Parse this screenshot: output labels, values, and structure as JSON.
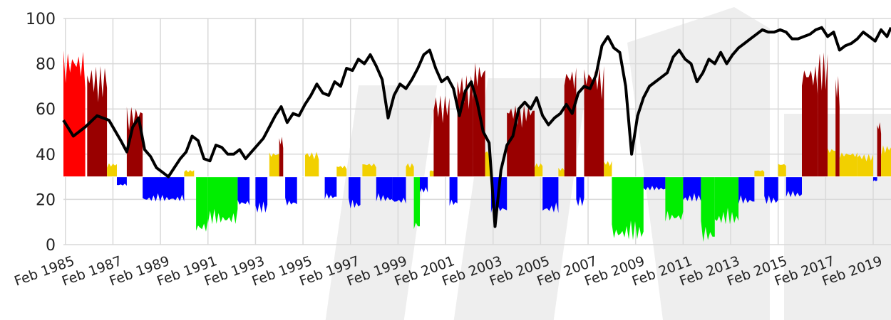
{
  "chart_data": {
    "type": "area",
    "title": "",
    "xlabel": "",
    "ylabel": "",
    "xlim": [
      "1985-01",
      "2019-11"
    ],
    "ylim": [
      0,
      100
    ],
    "baseline": 30,
    "grid": true,
    "legend": "none",
    "y_ticks": [
      0,
      20,
      40,
      60,
      80,
      100
    ],
    "x_ticks": [
      "Feb 1985",
      "Feb 1987",
      "Feb 1989",
      "Feb 1991",
      "Feb 1993",
      "Feb 1995",
      "Feb 1997",
      "Feb 1999",
      "Feb 2001",
      "Feb 2003",
      "Feb 2005",
      "Feb 2007",
      "Feb 2009",
      "Feb 2011",
      "Feb 2013",
      "Feb 2015",
      "Feb 2017",
      "Feb 2019"
    ],
    "colors": {
      "line": "#000000",
      "red": "#ff0000",
      "darkred": "#990000",
      "yellow": "#f2d000",
      "blue": "#0000ff",
      "green": "#00ee00",
      "grid": "#d9d9d9"
    },
    "line_series": [
      [
        "1985-01",
        55
      ],
      [
        "1985-06",
        48
      ],
      [
        "1985-12",
        52
      ],
      [
        "1986-06",
        57
      ],
      [
        "1986-12",
        55
      ],
      [
        "1987-06",
        46
      ],
      [
        "1987-09",
        41
      ],
      [
        "1987-12",
        52
      ],
      [
        "1988-03",
        56
      ],
      [
        "1988-06",
        42
      ],
      [
        "1988-09",
        39
      ],
      [
        "1988-12",
        34
      ],
      [
        "1989-03",
        32
      ],
      [
        "1989-06",
        30
      ],
      [
        "1989-09",
        34
      ],
      [
        "1989-12",
        38
      ],
      [
        "1990-03",
        41
      ],
      [
        "1990-06",
        48
      ],
      [
        "1990-09",
        46
      ],
      [
        "1990-12",
        38
      ],
      [
        "1991-03",
        37
      ],
      [
        "1991-06",
        44
      ],
      [
        "1991-09",
        43
      ],
      [
        "1991-12",
        40
      ],
      [
        "1992-03",
        40
      ],
      [
        "1992-06",
        42
      ],
      [
        "1992-09",
        38
      ],
      [
        "1992-12",
        41
      ],
      [
        "1993-03",
        44
      ],
      [
        "1993-06",
        47
      ],
      [
        "1993-09",
        52
      ],
      [
        "1993-12",
        57
      ],
      [
        "1994-03",
        61
      ],
      [
        "1994-06",
        54
      ],
      [
        "1994-09",
        58
      ],
      [
        "1994-12",
        57
      ],
      [
        "1995-03",
        62
      ],
      [
        "1995-06",
        66
      ],
      [
        "1995-09",
        71
      ],
      [
        "1995-12",
        67
      ],
      [
        "1996-03",
        66
      ],
      [
        "1996-06",
        72
      ],
      [
        "1996-09",
        70
      ],
      [
        "1996-12",
        78
      ],
      [
        "1997-03",
        77
      ],
      [
        "1997-06",
        82
      ],
      [
        "1997-09",
        80
      ],
      [
        "1997-12",
        84
      ],
      [
        "1998-03",
        79
      ],
      [
        "1998-06",
        73
      ],
      [
        "1998-09",
        56
      ],
      [
        "1998-12",
        66
      ],
      [
        "1999-03",
        71
      ],
      [
        "1999-06",
        69
      ],
      [
        "1999-09",
        73
      ],
      [
        "1999-12",
        78
      ],
      [
        "2000-03",
        84
      ],
      [
        "2000-06",
        86
      ],
      [
        "2000-09",
        78
      ],
      [
        "2000-12",
        72
      ],
      [
        "2001-03",
        74
      ],
      [
        "2001-06",
        69
      ],
      [
        "2001-09",
        57
      ],
      [
        "2001-12",
        68
      ],
      [
        "2002-03",
        72
      ],
      [
        "2002-06",
        63
      ],
      [
        "2002-09",
        50
      ],
      [
        "2002-12",
        45
      ],
      [
        "2003-03",
        8
      ],
      [
        "2003-06",
        33
      ],
      [
        "2003-09",
        44
      ],
      [
        "2003-12",
        48
      ],
      [
        "2004-03",
        60
      ],
      [
        "2004-06",
        63
      ],
      [
        "2004-09",
        60
      ],
      [
        "2004-12",
        65
      ],
      [
        "2005-03",
        57
      ],
      [
        "2005-06",
        53
      ],
      [
        "2005-09",
        56
      ],
      [
        "2005-12",
        58
      ],
      [
        "2006-03",
        62
      ],
      [
        "2006-06",
        58
      ],
      [
        "2006-09",
        67
      ],
      [
        "2006-12",
        70
      ],
      [
        "2007-03",
        69
      ],
      [
        "2007-06",
        75
      ],
      [
        "2007-09",
        88
      ],
      [
        "2007-12",
        92
      ],
      [
        "2008-03",
        87
      ],
      [
        "2008-06",
        85
      ],
      [
        "2008-09",
        70
      ],
      [
        "2008-12",
        40
      ],
      [
        "2009-03",
        57
      ],
      [
        "2009-06",
        65
      ],
      [
        "2009-09",
        70
      ],
      [
        "2009-12",
        72
      ],
      [
        "2010-03",
        74
      ],
      [
        "2010-06",
        76
      ],
      [
        "2010-09",
        83
      ],
      [
        "2010-12",
        86
      ],
      [
        "2011-03",
        82
      ],
      [
        "2011-06",
        80
      ],
      [
        "2011-09",
        72
      ],
      [
        "2011-12",
        76
      ],
      [
        "2012-03",
        82
      ],
      [
        "2012-06",
        80
      ],
      [
        "2012-09",
        85
      ],
      [
        "2012-12",
        80
      ],
      [
        "2013-03",
        84
      ],
      [
        "2013-06",
        87
      ],
      [
        "2013-09",
        89
      ],
      [
        "2013-12",
        91
      ],
      [
        "2014-03",
        93
      ],
      [
        "2014-06",
        95
      ],
      [
        "2014-09",
        94
      ],
      [
        "2014-12",
        94
      ],
      [
        "2015-03",
        95
      ],
      [
        "2015-06",
        94
      ],
      [
        "2015-09",
        91
      ],
      [
        "2015-12",
        91
      ],
      [
        "2016-03",
        92
      ],
      [
        "2016-06",
        93
      ],
      [
        "2016-09",
        95
      ],
      [
        "2016-12",
        96
      ],
      [
        "2017-03",
        92
      ],
      [
        "2017-06",
        94
      ],
      [
        "2017-09",
        86
      ],
      [
        "2017-12",
        88
      ],
      [
        "2018-03",
        89
      ],
      [
        "2018-06",
        91
      ],
      [
        "2018-09",
        94
      ],
      [
        "2018-12",
        92
      ],
      [
        "2019-03",
        90
      ],
      [
        "2019-06",
        95
      ],
      [
        "2019-09",
        92
      ],
      [
        "2019-11",
        96
      ]
    ],
    "area_bands": [
      {
        "color": "red",
        "start": "1985-01",
        "end": "1985-12",
        "value": 86
      },
      {
        "color": "darkred",
        "start": "1986-01",
        "end": "1986-11",
        "value": 79
      },
      {
        "color": "yellow",
        "start": "1986-11",
        "end": "1987-04",
        "value": 36
      },
      {
        "color": "blue",
        "start": "1987-04",
        "end": "1987-09",
        "value": 26
      },
      {
        "color": "darkred",
        "start": "1987-09",
        "end": "1988-05",
        "value": 61
      },
      {
        "color": "blue",
        "start": "1988-05",
        "end": "1990-02",
        "value": 19
      },
      {
        "color": "yellow",
        "start": "1990-02",
        "end": "1990-07",
        "value": 33
      },
      {
        "color": "green",
        "start": "1990-08",
        "end": "1991-02",
        "value": 5
      },
      {
        "color": "green",
        "start": "1991-02",
        "end": "1992-05",
        "value": 9
      },
      {
        "color": "blue",
        "start": "1992-05",
        "end": "1992-11",
        "value": 17
      },
      {
        "color": "blue",
        "start": "1993-02",
        "end": "1993-08",
        "value": 14
      },
      {
        "color": "yellow",
        "start": "1993-09",
        "end": "1994-02",
        "value": 41
      },
      {
        "color": "darkred",
        "start": "1994-02",
        "end": "1994-04",
        "value": 48
      },
      {
        "color": "blue",
        "start": "1994-05",
        "end": "1994-11",
        "value": 17
      },
      {
        "color": "yellow",
        "start": "1995-03",
        "end": "1995-10",
        "value": 41
      },
      {
        "color": "blue",
        "start": "1996-01",
        "end": "1996-07",
        "value": 20
      },
      {
        "color": "yellow",
        "start": "1996-07",
        "end": "1996-12",
        "value": 35
      },
      {
        "color": "blue",
        "start": "1997-01",
        "end": "1997-07",
        "value": 16
      },
      {
        "color": "yellow",
        "start": "1997-08",
        "end": "1998-03",
        "value": 36
      },
      {
        "color": "blue",
        "start": "1998-03",
        "end": "1998-11",
        "value": 19
      },
      {
        "color": "blue",
        "start": "1998-11",
        "end": "1999-06",
        "value": 18
      },
      {
        "color": "yellow",
        "start": "1999-06",
        "end": "1999-10",
        "value": 36
      },
      {
        "color": "green",
        "start": "1999-10",
        "end": "2000-01",
        "value": 6
      },
      {
        "color": "blue",
        "start": "2000-01",
        "end": "2000-05",
        "value": 23
      },
      {
        "color": "yellow",
        "start": "2000-06",
        "end": "2000-08",
        "value": 33
      },
      {
        "color": "darkred",
        "start": "2000-08",
        "end": "2001-04",
        "value": 66
      },
      {
        "color": "blue",
        "start": "2001-04",
        "end": "2001-08",
        "value": 17
      },
      {
        "color": "darkred",
        "start": "2001-08",
        "end": "2002-04",
        "value": 75
      },
      {
        "color": "darkred",
        "start": "2002-04",
        "end": "2002-10",
        "value": 81
      },
      {
        "color": "yellow",
        "start": "2002-10",
        "end": "2003-01",
        "value": 42
      },
      {
        "color": "blue",
        "start": "2003-01",
        "end": "2003-09",
        "value": 14
      },
      {
        "color": "darkred",
        "start": "2003-09",
        "end": "2004-11",
        "value": 62
      },
      {
        "color": "yellow",
        "start": "2004-11",
        "end": "2005-03",
        "value": 36
      },
      {
        "color": "blue",
        "start": "2005-03",
        "end": "2005-11",
        "value": 14
      },
      {
        "color": "yellow",
        "start": "2005-11",
        "end": "2006-02",
        "value": 34
      },
      {
        "color": "darkred",
        "start": "2006-02",
        "end": "2006-08",
        "value": 79
      },
      {
        "color": "blue",
        "start": "2006-08",
        "end": "2006-12",
        "value": 17
      },
      {
        "color": "darkred",
        "start": "2006-12",
        "end": "2007-10",
        "value": 79
      },
      {
        "color": "yellow",
        "start": "2007-10",
        "end": "2008-02",
        "value": 37
      },
      {
        "color": "green",
        "start": "2008-02",
        "end": "2009-06",
        "value": 2
      },
      {
        "color": "blue",
        "start": "2009-06",
        "end": "2010-05",
        "value": 24
      },
      {
        "color": "green",
        "start": "2010-05",
        "end": "2011-02",
        "value": 10
      },
      {
        "color": "blue",
        "start": "2011-02",
        "end": "2011-11",
        "value": 19
      },
      {
        "color": "green",
        "start": "2011-11",
        "end": "2012-06",
        "value": 1
      },
      {
        "color": "green",
        "start": "2012-06",
        "end": "2013-06",
        "value": 9
      },
      {
        "color": "blue",
        "start": "2013-06",
        "end": "2014-02",
        "value": 18
      },
      {
        "color": "yellow",
        "start": "2014-02",
        "end": "2014-07",
        "value": 33
      },
      {
        "color": "blue",
        "start": "2014-07",
        "end": "2015-02",
        "value": 18
      },
      {
        "color": "yellow",
        "start": "2015-02",
        "end": "2015-06",
        "value": 36
      },
      {
        "color": "blue",
        "start": "2015-06",
        "end": "2016-02",
        "value": 21
      },
      {
        "color": "darkred",
        "start": "2016-02",
        "end": "2016-10",
        "value": 80
      },
      {
        "color": "darkred",
        "start": "2016-10",
        "end": "2017-03",
        "value": 85
      },
      {
        "color": "yellow",
        "start": "2017-03",
        "end": "2017-07",
        "value": 43
      },
      {
        "color": "darkred",
        "start": "2017-07",
        "end": "2017-09",
        "value": 75
      },
      {
        "color": "yellow",
        "start": "2017-09",
        "end": "2018-06",
        "value": 41
      },
      {
        "color": "yellow",
        "start": "2018-06",
        "end": "2019-02",
        "value": 40
      },
      {
        "color": "blue",
        "start": "2019-02",
        "end": "2019-04",
        "value": 28
      },
      {
        "color": "darkred",
        "start": "2019-04",
        "end": "2019-06",
        "value": 55
      },
      {
        "color": "yellow",
        "start": "2019-06",
        "end": "2019-11",
        "value": 44
      }
    ]
  }
}
